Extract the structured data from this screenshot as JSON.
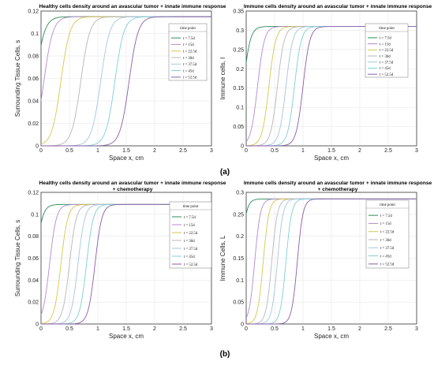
{
  "panel_labels": [
    "(a)",
    "(b)"
  ],
  "legend_title": "time point",
  "chart_data": [
    {
      "type": "line",
      "panel": "(a)",
      "title": "Healthy cells density around an avascular tumor + innate immune response",
      "xlabel": "Space x, cm",
      "ylabel": "Surrounding Tissue Cells, s",
      "xlim": [
        0,
        3
      ],
      "ylim": [
        0,
        0.12
      ],
      "xticks": [
        "0",
        "0.5",
        "1",
        "1.5",
        "2",
        "2.5",
        "3"
      ],
      "yticks": [
        "0",
        "0.02",
        "0.04",
        "0.06",
        "0.08",
        "0.1",
        "0.12"
      ],
      "grid": true,
      "legend": "top-right",
      "sigmoid_params": {
        "plateau": 0.115,
        "width": 0.08
      },
      "series": [
        {
          "name": "t = 7.5d",
          "midpoint": -0.1
        },
        {
          "name": "t = 15d",
          "midpoint": 0.05
        },
        {
          "name": "t = 22.5d",
          "midpoint": 0.35
        },
        {
          "name": "t = 30d",
          "midpoint": 0.7
        },
        {
          "name": "t = 37.5d",
          "midpoint": 1.05
        },
        {
          "name": "t = 45d",
          "midpoint": 1.3
        },
        {
          "name": "t = 52.5d",
          "midpoint": 1.55
        }
      ]
    },
    {
      "type": "line",
      "panel": "(a)",
      "title": "Immune cells density around an avascular tumor + innate immune response",
      "xlabel": "Space x, cm",
      "ylabel": "Immune cells, I",
      "xlim": [
        0,
        3
      ],
      "ylim": [
        0,
        0.35
      ],
      "xticks": [
        "0",
        "0.5",
        "1",
        "1.5",
        "2",
        "2.5",
        "3"
      ],
      "yticks": [
        "0",
        "0.05",
        "0.1",
        "0.15",
        "0.2",
        "0.25",
        "0.3",
        "0.35"
      ],
      "grid": true,
      "legend": "top-right",
      "sigmoid_params": {
        "plateau": 0.31,
        "width": 0.06
      },
      "series": [
        {
          "name": "t = 7.5d",
          "midpoint": -0.05
        },
        {
          "name": "t = 15d",
          "midpoint": 0.2
        },
        {
          "name": "t = 22.5d",
          "midpoint": 0.4
        },
        {
          "name": "t = 30d",
          "midpoint": 0.55
        },
        {
          "name": "t = 37.5d",
          "midpoint": 0.7
        },
        {
          "name": "t = 45d",
          "midpoint": 0.85
        },
        {
          "name": "t = 52.5d",
          "midpoint": 1.0
        }
      ]
    },
    {
      "type": "line",
      "panel": "(b)",
      "title": "Healthy cells density around an avascular tumor + innate immune response + chemotherapy",
      "xlabel": "Space x, cm",
      "ylabel": "Surrounding Tissue Cells, s",
      "xlim": [
        0,
        3
      ],
      "ylim": [
        0,
        0.12
      ],
      "xticks": [
        "0",
        "0.5",
        "1",
        "1.5",
        "2",
        "2.5",
        "3"
      ],
      "yticks": [
        "0",
        "0.02",
        "0.04",
        "0.06",
        "0.08",
        "0.1",
        "0.12"
      ],
      "grid": true,
      "legend": "top-right",
      "sigmoid_params": {
        "plateau": 0.109,
        "width": 0.06
      },
      "series": [
        {
          "name": "t = 7.5d",
          "midpoint": -0.1
        },
        {
          "name": "t = 15d",
          "midpoint": 0.15
        },
        {
          "name": "t = 22.5d",
          "midpoint": 0.35
        },
        {
          "name": "t = 30d",
          "midpoint": 0.5
        },
        {
          "name": "t = 37.5d",
          "midpoint": 0.65
        },
        {
          "name": "t = 45d",
          "midpoint": 0.8
        },
        {
          "name": "t = 52.5d",
          "midpoint": 0.95
        }
      ]
    },
    {
      "type": "line",
      "panel": "(b)",
      "title": "Immune cells density around an avascular tumor + innate immune response + chemotherapy",
      "xlabel": "Space x, cm",
      "ylabel": "Immune Cells, L",
      "xlim": [
        0,
        3
      ],
      "ylim": [
        0,
        0.3
      ],
      "xticks": [
        "0",
        "0.5",
        "1",
        "1.5",
        "2",
        "2.5",
        "3"
      ],
      "yticks": [
        "0",
        "0.05",
        "0.1",
        "0.15",
        "0.2",
        "0.25",
        "0.3"
      ],
      "grid": true,
      "legend": "top-right",
      "sigmoid_params": {
        "plateau": 0.285,
        "width": 0.05
      },
      "series": [
        {
          "name": "t = 7.5d",
          "midpoint": -0.1
        },
        {
          "name": "t = 15d",
          "midpoint": 0.15
        },
        {
          "name": "t = 22.5d",
          "midpoint": 0.3
        },
        {
          "name": "t = 30d",
          "midpoint": 0.45
        },
        {
          "name": "t = 37.5d",
          "midpoint": 0.55
        },
        {
          "name": "t = 45d",
          "midpoint": 0.7
        },
        {
          "name": "t = 52.5d",
          "midpoint": 0.9
        }
      ]
    }
  ],
  "series_colors": [
    "#2e8b57",
    "#b58ad0",
    "#d7c74a",
    "#b7b7b7",
    "#a5c6e0",
    "#7fcfd6",
    "#8b5ea8"
  ]
}
